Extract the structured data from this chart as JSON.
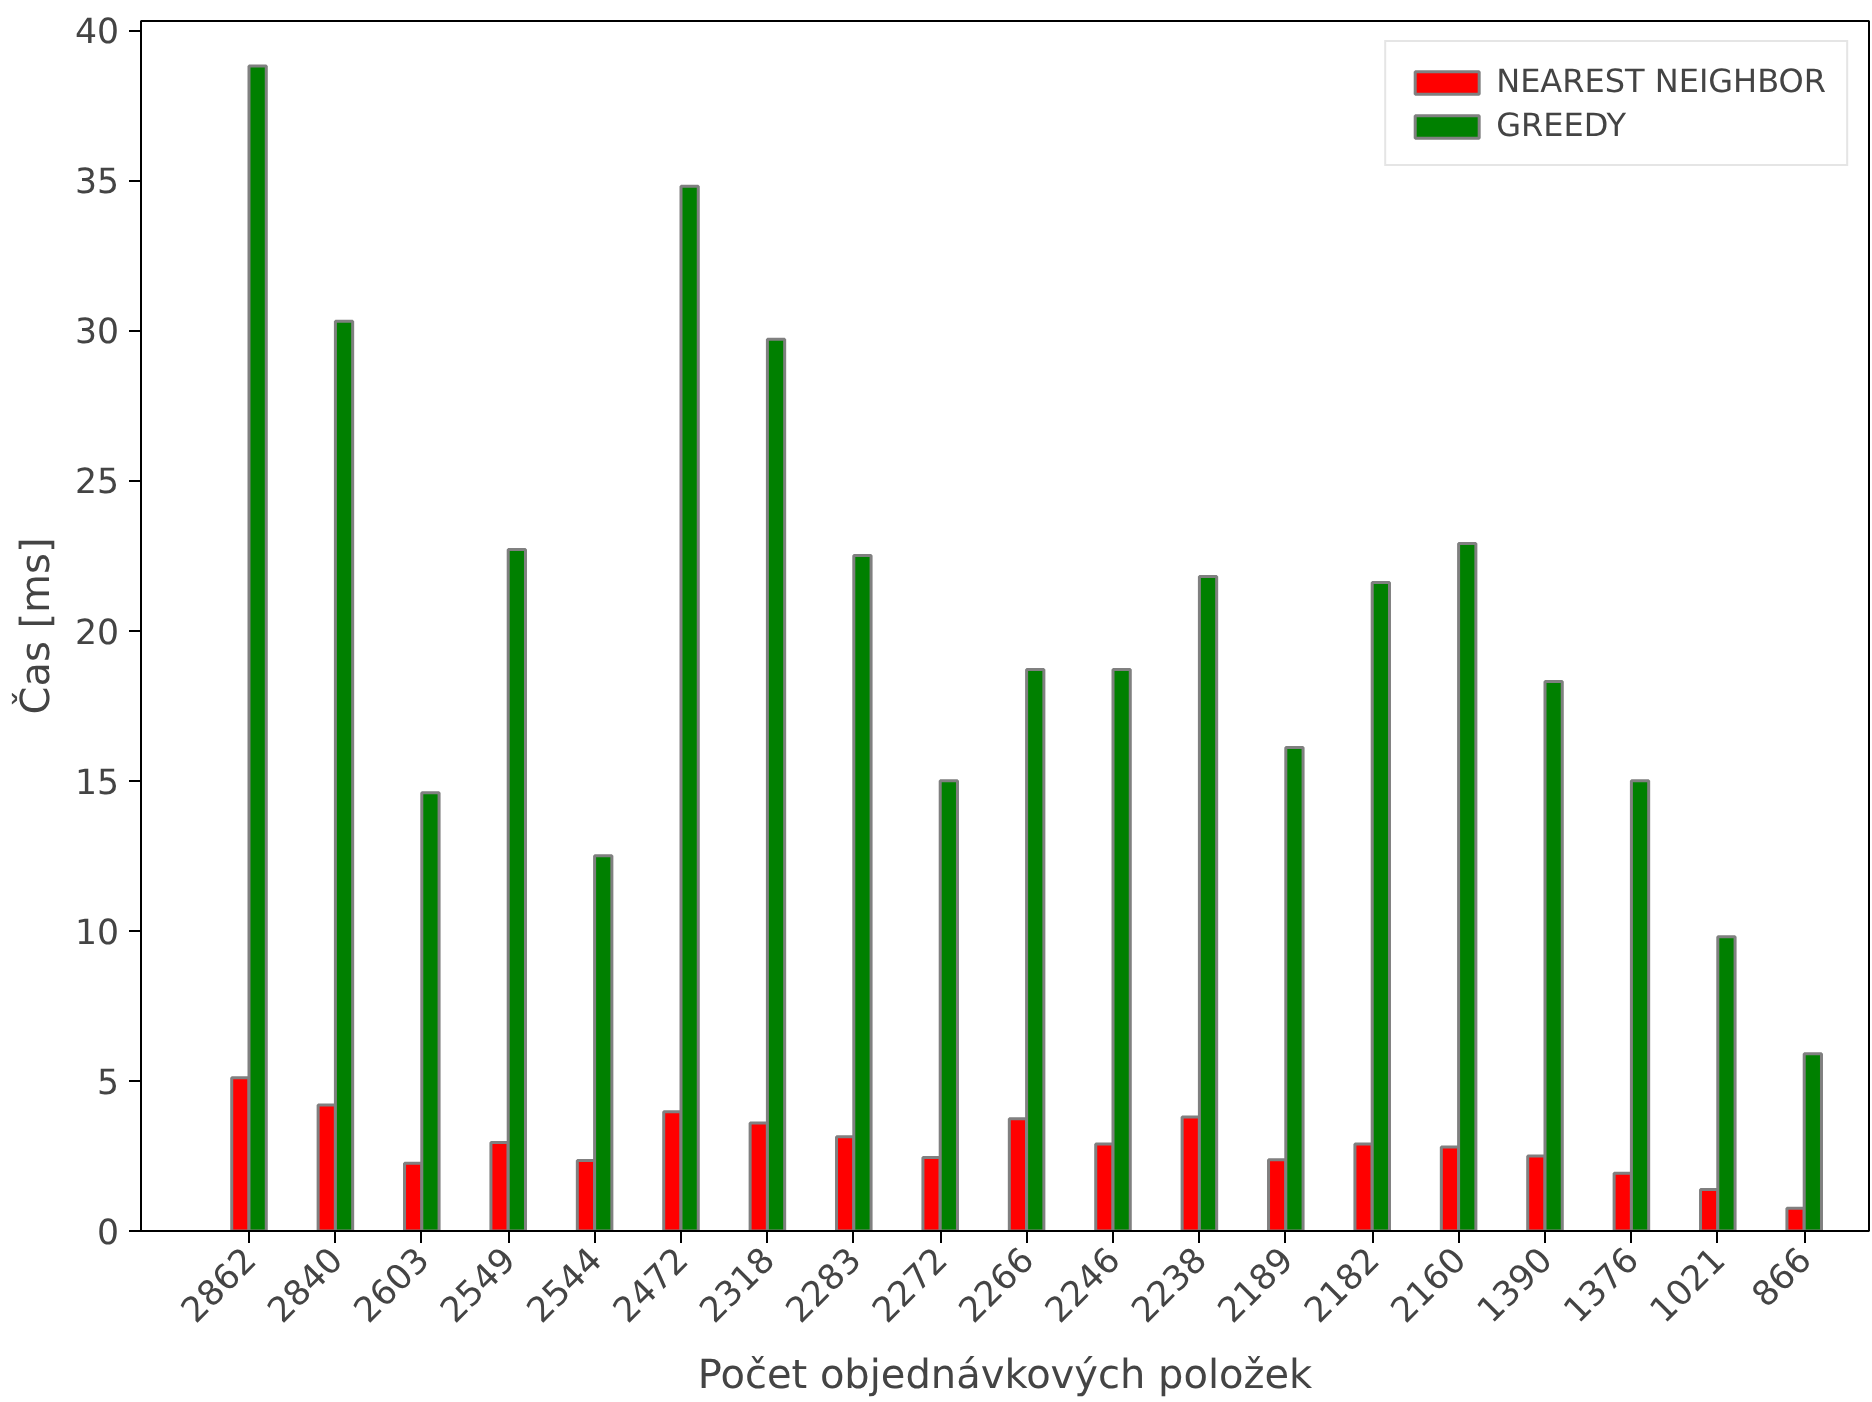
{
  "chart_data": {
    "type": "bar",
    "xlabel": "Počet objednávkových položek",
    "ylabel": "Čas [ms]",
    "categories": [
      "2862",
      "2840",
      "2603",
      "2549",
      "2544",
      "2472",
      "2318",
      "2283",
      "2272",
      "2266",
      "2246",
      "2238",
      "2189",
      "2182",
      "2160",
      "1390",
      "1376",
      "1021",
      "866"
    ],
    "series": [
      {
        "name": "NEAREST NEIGHBOR",
        "color": "#ff0000",
        "values": [
          5.1,
          4.2,
          2.26,
          2.95,
          2.35,
          3.97,
          3.6,
          3.14,
          2.45,
          3.74,
          2.9,
          3.8,
          2.37,
          2.9,
          2.8,
          2.5,
          1.92,
          1.38,
          0.76
        ]
      },
      {
        "name": "GREEDY",
        "color": "#008000",
        "values": [
          38.8,
          30.3,
          14.6,
          22.7,
          12.5,
          34.8,
          29.7,
          22.5,
          15.0,
          18.7,
          18.7,
          21.8,
          16.1,
          21.6,
          22.9,
          18.3,
          15.0,
          9.8,
          5.9
        ]
      }
    ],
    "ylim": [
      0,
      40.3
    ],
    "yticks": [
      0,
      5,
      10,
      15,
      20,
      25,
      30,
      35,
      40
    ],
    "grid": false,
    "legend": "top right"
  }
}
